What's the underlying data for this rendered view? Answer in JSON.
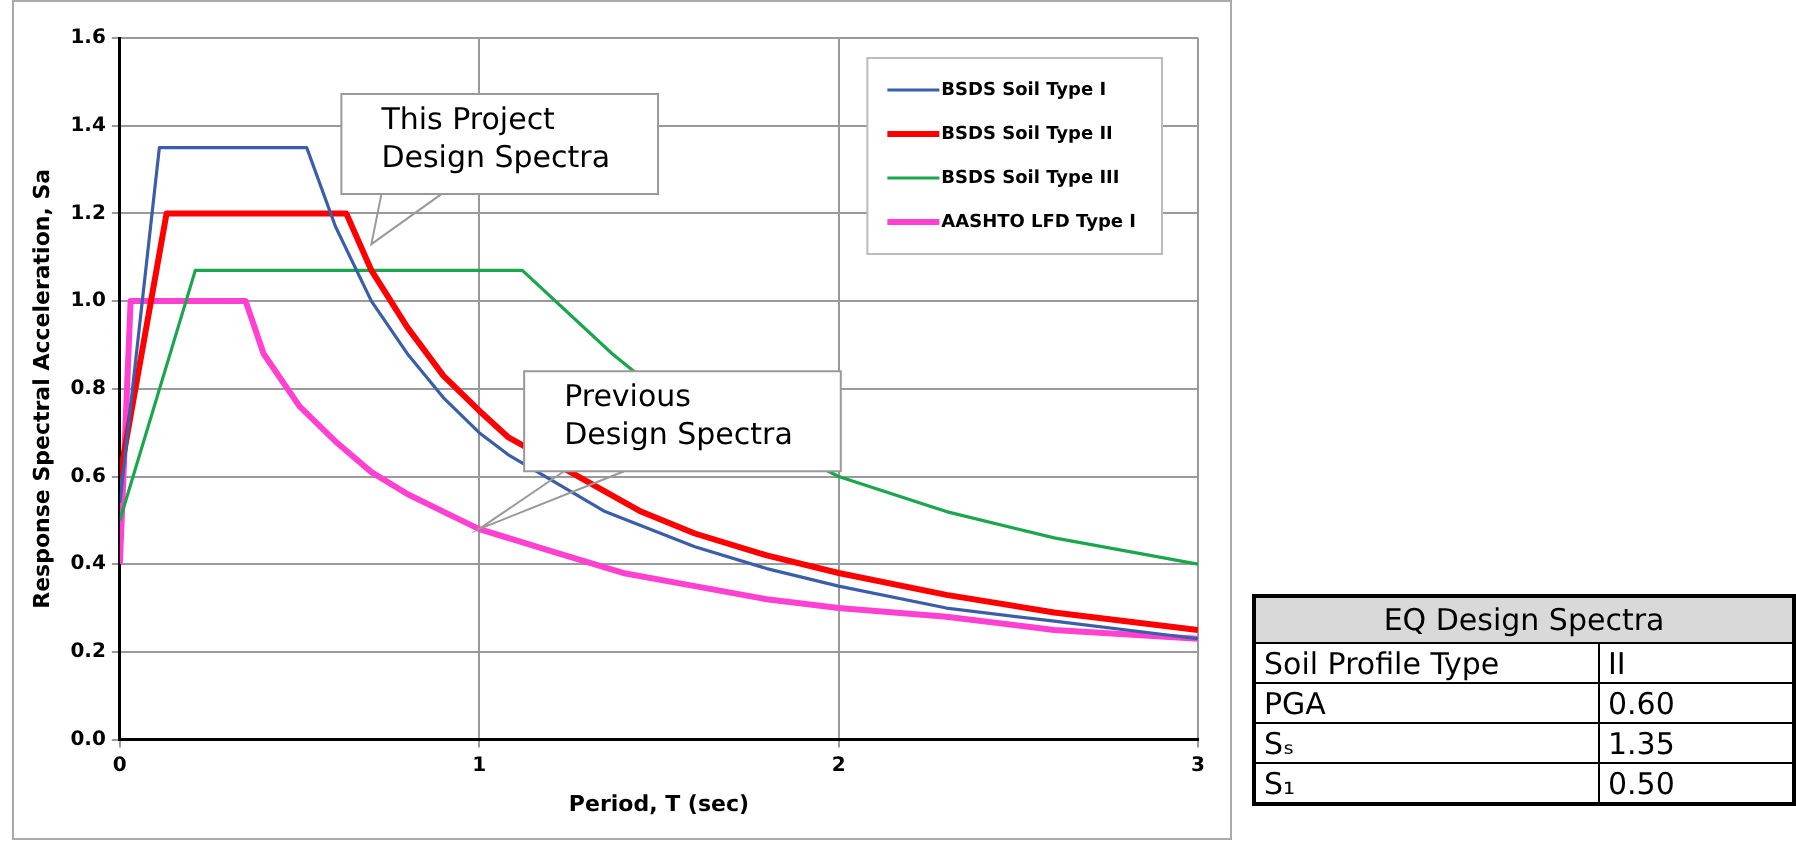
{
  "chart_data": [
    {
      "type": "line",
      "xlabel": "Period, T (sec)",
      "ylabel": "Response Spectral Acceleration, Sa",
      "xlim": [
        0,
        3
      ],
      "xticks": [
        0,
        1,
        2,
        3
      ],
      "ylim": [
        0,
        1.6
      ],
      "yticks": [
        {
          "value": 0,
          "label": "0.0"
        },
        {
          "value": 0.2,
          "label": "0.2"
        },
        {
          "value": 0.4,
          "label": "0.4"
        },
        {
          "value": 0.6,
          "label": "0.6"
        },
        {
          "value": 0.8,
          "label": "0.8"
        },
        {
          "value": 1,
          "label": "1.0"
        },
        {
          "value": 1.2,
          "label": "1.2"
        },
        {
          "value": 1.4,
          "label": "1.4"
        },
        {
          "value": 1.6,
          "label": "1.6"
        }
      ],
      "grid": true,
      "legend": "top right",
      "marker": "none",
      "line_style": "solid",
      "series": [
        {
          "name": "BSDS Soil Type I",
          "color": "#3a5ea8",
          "x": [
            0,
            0.11,
            0.52,
            0.6,
            0.7,
            0.8,
            0.9,
            1.0,
            1.08,
            1.35,
            1.6,
            1.8,
            2.0,
            2.3,
            2.6,
            3.0
          ],
          "values": [
            0.54,
            1.35,
            1.35,
            1.17,
            1.0,
            0.88,
            0.78,
            0.7,
            0.65,
            0.52,
            0.44,
            0.39,
            0.35,
            0.3,
            0.27,
            0.23
          ]
        },
        {
          "name": "BSDS Soil Type II",
          "color": "#ff0000",
          "x": [
            0,
            0.13,
            0.63,
            0.7,
            0.8,
            0.9,
            1.0,
            1.08,
            1.45,
            1.6,
            1.8,
            2.0,
            2.3,
            2.6,
            3.0
          ],
          "values": [
            0.6,
            1.2,
            1.2,
            1.07,
            0.94,
            0.83,
            0.75,
            0.69,
            0.52,
            0.47,
            0.42,
            0.38,
            0.33,
            0.29,
            0.25
          ]
        },
        {
          "name": "BSDS Soil Type III",
          "color": "#19a64c",
          "x": [
            0,
            0.21,
            1.12,
            1.37,
            1.43,
            2.0,
            2.3,
            2.6,
            3.0
          ],
          "values": [
            0.5,
            1.07,
            1.07,
            0.88,
            0.84,
            0.6,
            0.52,
            0.46,
            0.4
          ]
        },
        {
          "name": "AASHTO LFD Type I",
          "color": "#ff40d0",
          "x": [
            0,
            0.03,
            0.35,
            0.4,
            0.5,
            0.6,
            0.7,
            0.8,
            0.9,
            1.0,
            1.2,
            1.4,
            1.6,
            1.8,
            2.0,
            2.3,
            2.6,
            3.0
          ],
          "values": [
            0.4,
            1.0,
            1.0,
            0.88,
            0.76,
            0.68,
            0.61,
            0.56,
            0.52,
            0.48,
            0.43,
            0.38,
            0.35,
            0.32,
            0.3,
            0.28,
            0.25,
            0.23
          ]
        }
      ],
      "annotations": [
        {
          "text": "This Project\nDesign Spectra",
          "x": 0.7,
          "y": 1.13
        },
        "Previous\nDesign Spectra"
      ]
    },
    {
      "type": "other",
      "title": "EQ Design Spectra",
      "annotations": [
        "Soil Profile Type",
        "II",
        "PGA",
        "0.60",
        "Sₛ",
        "1.35",
        "S₁",
        "0.50"
      ]
    }
  ]
}
